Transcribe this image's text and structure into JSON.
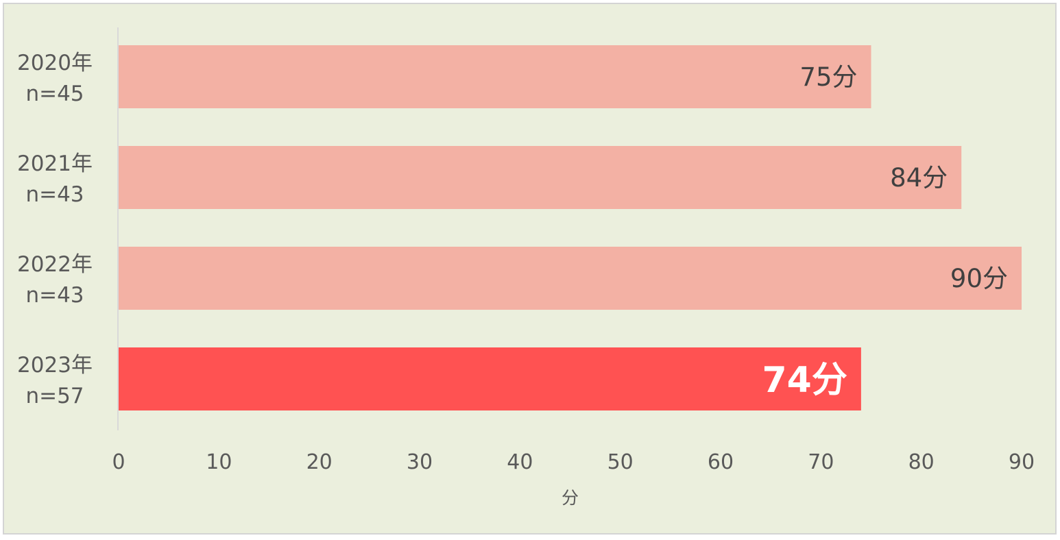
{
  "chart_data": {
    "type": "bar",
    "orientation": "horizontal",
    "categories": [
      {
        "year": "2020年",
        "n": "n=45"
      },
      {
        "year": "2021年",
        "n": "n=43"
      },
      {
        "year": "2022年",
        "n": "n=43"
      },
      {
        "year": "2023年",
        "n": "n=57"
      }
    ],
    "values": [
      75,
      84,
      90,
      74
    ],
    "value_labels": [
      "75分",
      "84分",
      "90分",
      "74分"
    ],
    "highlight_index": 3,
    "xlim": [
      0,
      90
    ],
    "xticks": [
      0,
      10,
      20,
      30,
      40,
      50,
      60,
      70,
      80,
      90
    ],
    "xlabel": "分",
    "grid": false,
    "legend": "none",
    "colors": {
      "background": "#ebefdd",
      "bar": "#f3b1a4",
      "bar_highlight": "#ff5252",
      "axis": "#d9d9d9"
    }
  }
}
